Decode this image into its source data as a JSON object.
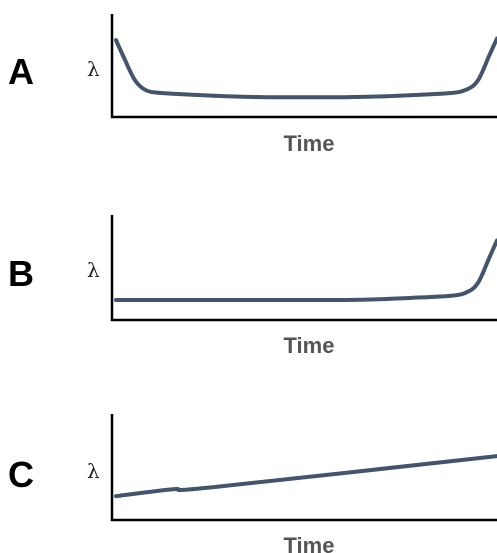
{
  "colors": {
    "curve": "#44546A",
    "axis": "#000000",
    "xlabel": "#555555"
  },
  "chart_data": [
    {
      "type": "line",
      "panel_label": "A",
      "ylabel": "λ",
      "xlabel": "Time",
      "xlim": [
        0,
        100
      ],
      "ylim": [
        0,
        100
      ],
      "series": [
        {
          "x": [
            0,
            2,
            5,
            8,
            12,
            20,
            30,
            40,
            50,
            60,
            70,
            80,
            88,
            92,
            95,
            98,
            100
          ],
          "y": [
            88,
            68,
            40,
            28,
            25,
            23,
            21,
            20,
            20,
            20,
            21,
            23,
            25,
            29,
            40,
            70,
            90
          ]
        }
      ]
    },
    {
      "type": "line",
      "panel_label": "B",
      "ylabel": "λ",
      "xlabel": "Time",
      "xlim": [
        0,
        100
      ],
      "ylim": [
        0,
        100
      ],
      "series": [
        {
          "x": [
            0,
            20,
            40,
            60,
            70,
            80,
            88,
            92,
            95,
            98,
            100
          ],
          "y": [
            20,
            20,
            20,
            20,
            21,
            23,
            25,
            29,
            40,
            70,
            90
          ]
        }
      ]
    },
    {
      "type": "line",
      "panel_label": "C",
      "ylabel": "λ",
      "xlabel": "Time",
      "xlim": [
        0,
        100
      ],
      "ylim": [
        0,
        100
      ],
      "series": [
        {
          "x": [
            0,
            15,
            25,
            100
          ],
          "y": [
            24,
            32,
            34,
            70
          ]
        }
      ]
    }
  ]
}
